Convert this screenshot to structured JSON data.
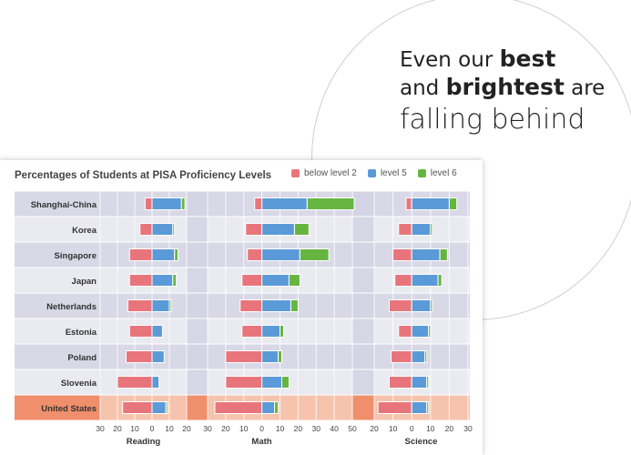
{
  "headline": {
    "line1_pre": "Even our ",
    "line1_bold": "best",
    "line2_pre": "and ",
    "line2_bold": "brightest",
    "line2_post": " are",
    "line3": "falling behind"
  },
  "colors": {
    "below": "#e8757b",
    "level5": "#5b9ad8",
    "level6": "#67b541",
    "row_light": "#eaeaf1",
    "row_dark": "#d8d8e7",
    "highlight": "#f6c3ad",
    "highlight_strong": "#f08f6b"
  },
  "chart_data": {
    "type": "bar",
    "title": "Percentages of Students at PISA Proficiency Levels",
    "legend": [
      "below level 2",
      "level 5",
      "level 6"
    ],
    "legend_position": "top-right",
    "categories": [
      "Shanghai-China",
      "Korea",
      "Singapore",
      "Japan",
      "Netherlands",
      "Estonia",
      "Poland",
      "Slovenia",
      "United States"
    ],
    "highlight_category": "United States",
    "panels": [
      {
        "subject": "Reading",
        "ticks": [
          "30",
          "20",
          "10",
          "0",
          "10",
          "20"
        ],
        "xlim": [
          -30,
          20
        ],
        "series": [
          {
            "name": "below level 2",
            "values": [
              4,
              7,
              13,
              13,
              14,
              13,
              15,
              20,
              17
            ]
          },
          {
            "name": "level 5",
            "values": [
              17,
              12,
              13,
              12,
              10,
              6,
              7,
              4,
              8
            ]
          },
          {
            "name": "level 6",
            "values": [
              2,
              1,
              2,
              2,
              1,
              0,
              0,
              0,
              1
            ]
          }
        ]
      },
      {
        "subject": "Math",
        "ticks": [
          "30",
          "20",
          "10",
          "0",
          "10",
          "20",
          "30",
          "40",
          "50"
        ],
        "xlim": [
          -30,
          50
        ],
        "series": [
          {
            "name": "below level 2",
            "values": [
              4,
              9,
              8,
              11,
              12,
              11,
              20,
              20,
              26
            ]
          },
          {
            "name": "level 5",
            "values": [
              25,
              18,
              21,
              15,
              16,
              10,
              9,
              11,
              7
            ]
          },
          {
            "name": "level 6",
            "values": [
              26,
              8,
              16,
              6,
              4,
              2,
              2,
              4,
              2
            ]
          }
        ]
      },
      {
        "subject": "Science",
        "ticks": [
          "20",
          "10",
          "0",
          "10",
          "20",
          "30"
        ],
        "xlim": [
          -20,
          30
        ],
        "series": [
          {
            "name": "below level 2",
            "values": [
              3,
              7,
              10,
              9,
              12,
              7,
              11,
              12,
              18
            ]
          },
          {
            "name": "level 5",
            "values": [
              20,
              10,
              15,
              14,
              10,
              9,
              7,
              8,
              8
            ]
          },
          {
            "name": "level 6",
            "values": [
              4,
              1,
              4,
              2,
              1,
              1,
              1,
              1,
              1
            ]
          }
        ]
      }
    ]
  }
}
